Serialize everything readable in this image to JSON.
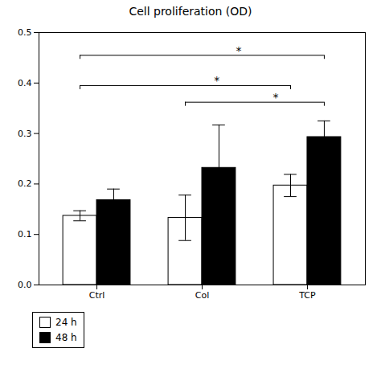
{
  "chart_data": {
    "type": "bar",
    "title": "Cell proliferation (OD)",
    "categories": [
      "Ctrl",
      "Col",
      "TCP"
    ],
    "series": [
      {
        "name": "24 h",
        "color": "#ffffff",
        "values": [
          0.137,
          0.133,
          0.197
        ],
        "errors": [
          0.01,
          0.045,
          0.022
        ]
      },
      {
        "name": "48 h",
        "color": "#000000",
        "values": [
          0.168,
          0.232,
          0.293
        ],
        "errors": [
          0.022,
          0.085,
          0.032
        ]
      }
    ],
    "annotations": [
      {
        "text": "*",
        "from_category": "Ctrl",
        "from_series": "24 h",
        "to_category": "TCP",
        "to_series": "48 h",
        "y": 0.455
      },
      {
        "text": "*",
        "from_category": "Ctrl",
        "from_series": "24 h",
        "to_category": "TCP",
        "to_series": "24 h",
        "y": 0.395
      },
      {
        "text": "*",
        "from_category": "Col",
        "from_series": "24 h",
        "to_category": "TCP",
        "to_series": "48 h",
        "y": 0.362
      }
    ],
    "ylim": [
      0,
      0.5
    ],
    "yticks": [
      {
        "value": 0,
        "label": "0.0"
      },
      0.1,
      0.2,
      0.3,
      0.4,
      0.5
    ],
    "grid": false,
    "legend": "bottom"
  }
}
